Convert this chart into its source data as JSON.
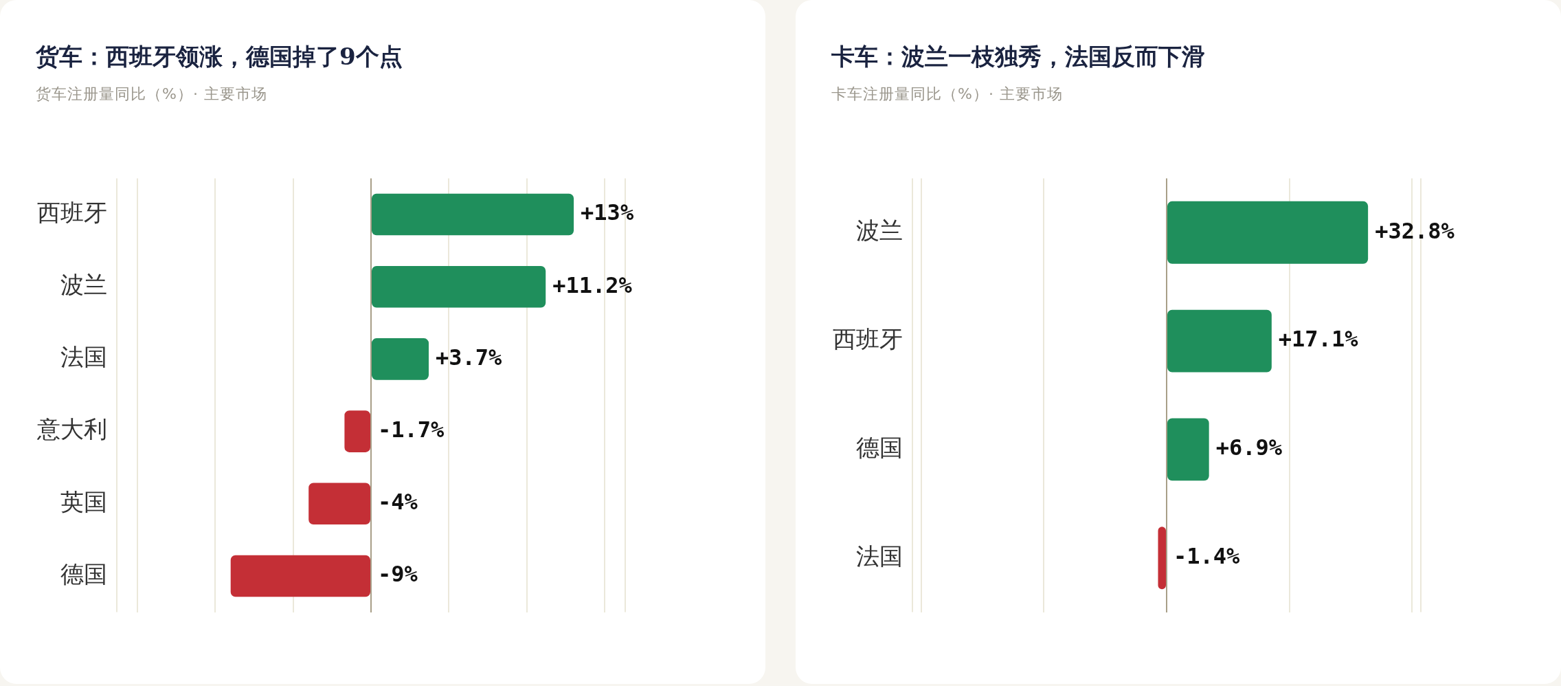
{
  "chart_data": [
    {
      "type": "bar",
      "orientation": "horizontal",
      "title": "货车：西班牙领涨，德国掉了9个点",
      "subtitle": "货车注册量同比（%）· 主要市场",
      "categories": [
        "西班牙",
        "波兰",
        "法国",
        "意大利",
        "英国",
        "德国"
      ],
      "values": [
        13,
        11.2,
        3.7,
        -1.7,
        -4,
        -9
      ],
      "colors": [
        "#1f8f5c",
        "#1f8f5c",
        "#1f8f5c",
        "#c42f36",
        "#c42f36",
        "#c42f36"
      ],
      "value_labels": [
        "+13%",
        "+11.2%",
        "+3.7%",
        "-1.7%",
        "-4%",
        "-9%"
      ],
      "xlim": [
        -16.3,
        16.3
      ],
      "xticks": [
        {
          "value": -15,
          "label": null
        },
        {
          "value": -10,
          "label": null
        },
        {
          "value": -5,
          "label": null
        },
        {
          "value": 0,
          "label": null
        },
        {
          "value": 5,
          "label": null
        },
        {
          "value": 10,
          "label": null
        },
        {
          "value": 15,
          "label": null
        }
      ],
      "grid": "x",
      "tick_labels": "y",
      "legend": false
    },
    {
      "type": "bar",
      "orientation": "horizontal",
      "title": "卡车：波兰一枝独秀，法国反而下滑",
      "subtitle": "卡车注册量同比（%）· 主要市场",
      "categories": [
        "波兰",
        "西班牙",
        "德国",
        "法国"
      ],
      "values": [
        32.8,
        17.1,
        6.9,
        -1.4
      ],
      "colors": [
        "#1f8f5c",
        "#1f8f5c",
        "#1f8f5c",
        "#c42f36"
      ],
      "value_labels": [
        "+32.8%",
        "+17.1%",
        "+6.9%",
        "-1.4%"
      ],
      "xlim": [
        -41.4,
        41.4
      ],
      "xticks": [
        {
          "value": -40,
          "label": null
        },
        {
          "value": -20,
          "label": null
        },
        {
          "value": 0,
          "label": null
        },
        {
          "value": 20,
          "label": null
        },
        {
          "value": 40,
          "label": null
        }
      ],
      "grid": "x",
      "tick_labels": "y",
      "legend": false
    }
  ]
}
